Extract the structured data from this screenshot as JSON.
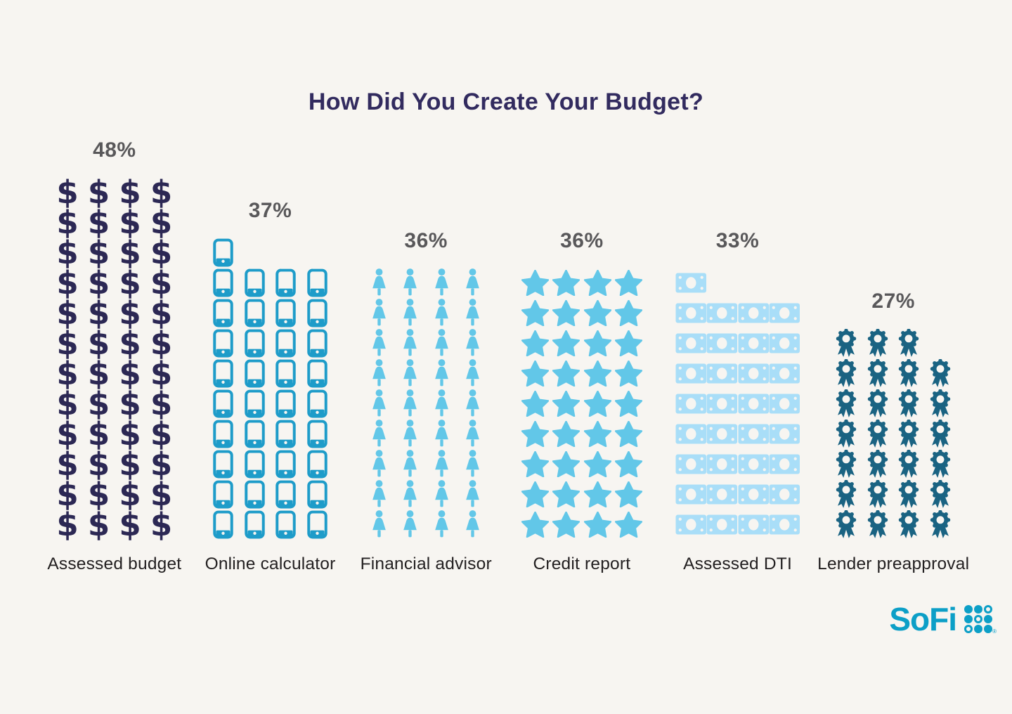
{
  "title": "How Did You Create Your Budget?",
  "chart_data": {
    "type": "bar",
    "style": "pictogram-unit-chart",
    "title": "How Did You Create Your Budget?",
    "unit_per_icon_percent": 1,
    "icons_per_row": 4,
    "partial_row_position": "top-left",
    "alignment": "columns bottom-aligned",
    "categories": [
      "Assessed budget",
      "Online calculator",
      "Financial advisor",
      "Credit report",
      "Assessed DTI",
      "Lender preapproval"
    ],
    "values": [
      48,
      37,
      36,
      36,
      33,
      27
    ],
    "value_labels": [
      "48%",
      "37%",
      "36%",
      "36%",
      "33%",
      "27%"
    ],
    "icon_types": [
      "dollar",
      "phone",
      "person",
      "star",
      "bill",
      "ribbon"
    ],
    "icon_glyphs": {
      "dollar": "$"
    },
    "icon_colors": {
      "dollar": "#2c2854",
      "phone": "#1e9cc9",
      "person": "#62c7e8",
      "star": "#62c7e8",
      "bill": "#a9def8",
      "ribbon": "#1a6382"
    }
  },
  "branding": {
    "logo_text": "SoFi",
    "logo_color": "#0c9fc7",
    "registered_mark": "®",
    "dot_pattern": [
      [
        "filled",
        "filled",
        "outline"
      ],
      [
        "filled",
        "outline",
        "filled"
      ],
      [
        "outline",
        "filled",
        "filled"
      ]
    ]
  },
  "colors": {
    "background": "#f7f5f1",
    "title": "#322b5f",
    "percent_label": "#59585a",
    "category_label": "#232021"
  }
}
